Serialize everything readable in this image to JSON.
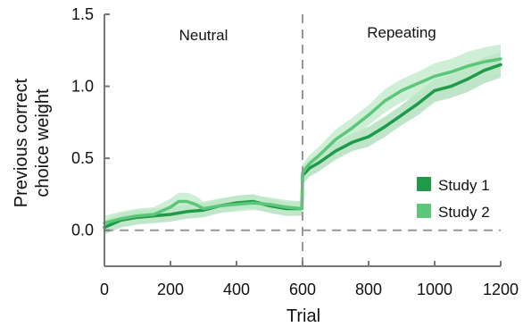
{
  "chart_data": {
    "type": "line",
    "xlabel": "Trial",
    "ylabel_lines": [
      "Previous correct",
      "choice weight"
    ],
    "xlim": [
      0,
      1200
    ],
    "ylim": [
      -0.25,
      1.5
    ],
    "xticks": [
      0,
      200,
      400,
      600,
      800,
      1000,
      1200
    ],
    "yticks": [
      0.0,
      0.5,
      1.0,
      1.5
    ],
    "xtick_labels": [
      "0",
      "200",
      "400",
      "600",
      "800",
      "1000",
      "1200"
    ],
    "ytick_labels": [
      "0.0",
      "0.5",
      "1.0",
      "1.5"
    ],
    "grid": false,
    "legend_position": "bottom-right",
    "reference_lines": {
      "horizontal_y": 0.0,
      "vertical_x": 600
    },
    "annotations": [
      {
        "text": "Neutral",
        "x": 300,
        "y": 1.32
      },
      {
        "text": "Repeating",
        "x": 900,
        "y": 1.34
      }
    ],
    "series": [
      {
        "name": "Study 1",
        "color": "#1f9a4a",
        "band_color": "#a8dcb4",
        "x": [
          0,
          50,
          100,
          150,
          200,
          250,
          300,
          350,
          400,
          450,
          500,
          550,
          598,
          600,
          620,
          650,
          700,
          750,
          800,
          850,
          900,
          950,
          1000,
          1050,
          1100,
          1150,
          1200
        ],
        "y": [
          0.02,
          0.07,
          0.09,
          0.1,
          0.11,
          0.13,
          0.14,
          0.17,
          0.19,
          0.2,
          0.17,
          0.15,
          0.15,
          0.38,
          0.43,
          0.47,
          0.55,
          0.61,
          0.65,
          0.72,
          0.8,
          0.88,
          0.97,
          1.0,
          1.05,
          1.11,
          1.15
        ],
        "band": [
          0.05,
          0.05,
          0.05,
          0.05,
          0.05,
          0.05,
          0.05,
          0.05,
          0.05,
          0.05,
          0.05,
          0.05,
          0.05,
          0.06,
          0.06,
          0.06,
          0.06,
          0.06,
          0.07,
          0.07,
          0.07,
          0.08,
          0.08,
          0.08,
          0.09,
          0.09,
          0.09
        ]
      },
      {
        "name": "Study 2",
        "color": "#5cc67a",
        "band_color": "#bfe8c8",
        "x": [
          0,
          50,
          100,
          150,
          200,
          225,
          250,
          275,
          300,
          350,
          400,
          450,
          500,
          550,
          598,
          600,
          620,
          650,
          700,
          750,
          800,
          850,
          900,
          950,
          1000,
          1050,
          1100,
          1150,
          1200
        ],
        "y": [
          0.05,
          0.08,
          0.1,
          0.11,
          0.16,
          0.2,
          0.2,
          0.18,
          0.15,
          0.17,
          0.18,
          0.19,
          0.18,
          0.16,
          0.15,
          0.4,
          0.46,
          0.52,
          0.63,
          0.71,
          0.8,
          0.9,
          0.97,
          1.02,
          1.07,
          1.1,
          1.14,
          1.17,
          1.19
        ],
        "band": [
          0.05,
          0.05,
          0.05,
          0.05,
          0.06,
          0.06,
          0.06,
          0.06,
          0.05,
          0.05,
          0.05,
          0.05,
          0.05,
          0.05,
          0.05,
          0.06,
          0.06,
          0.06,
          0.07,
          0.07,
          0.07,
          0.08,
          0.08,
          0.08,
          0.09,
          0.09,
          0.1,
          0.1,
          0.1
        ]
      }
    ]
  }
}
